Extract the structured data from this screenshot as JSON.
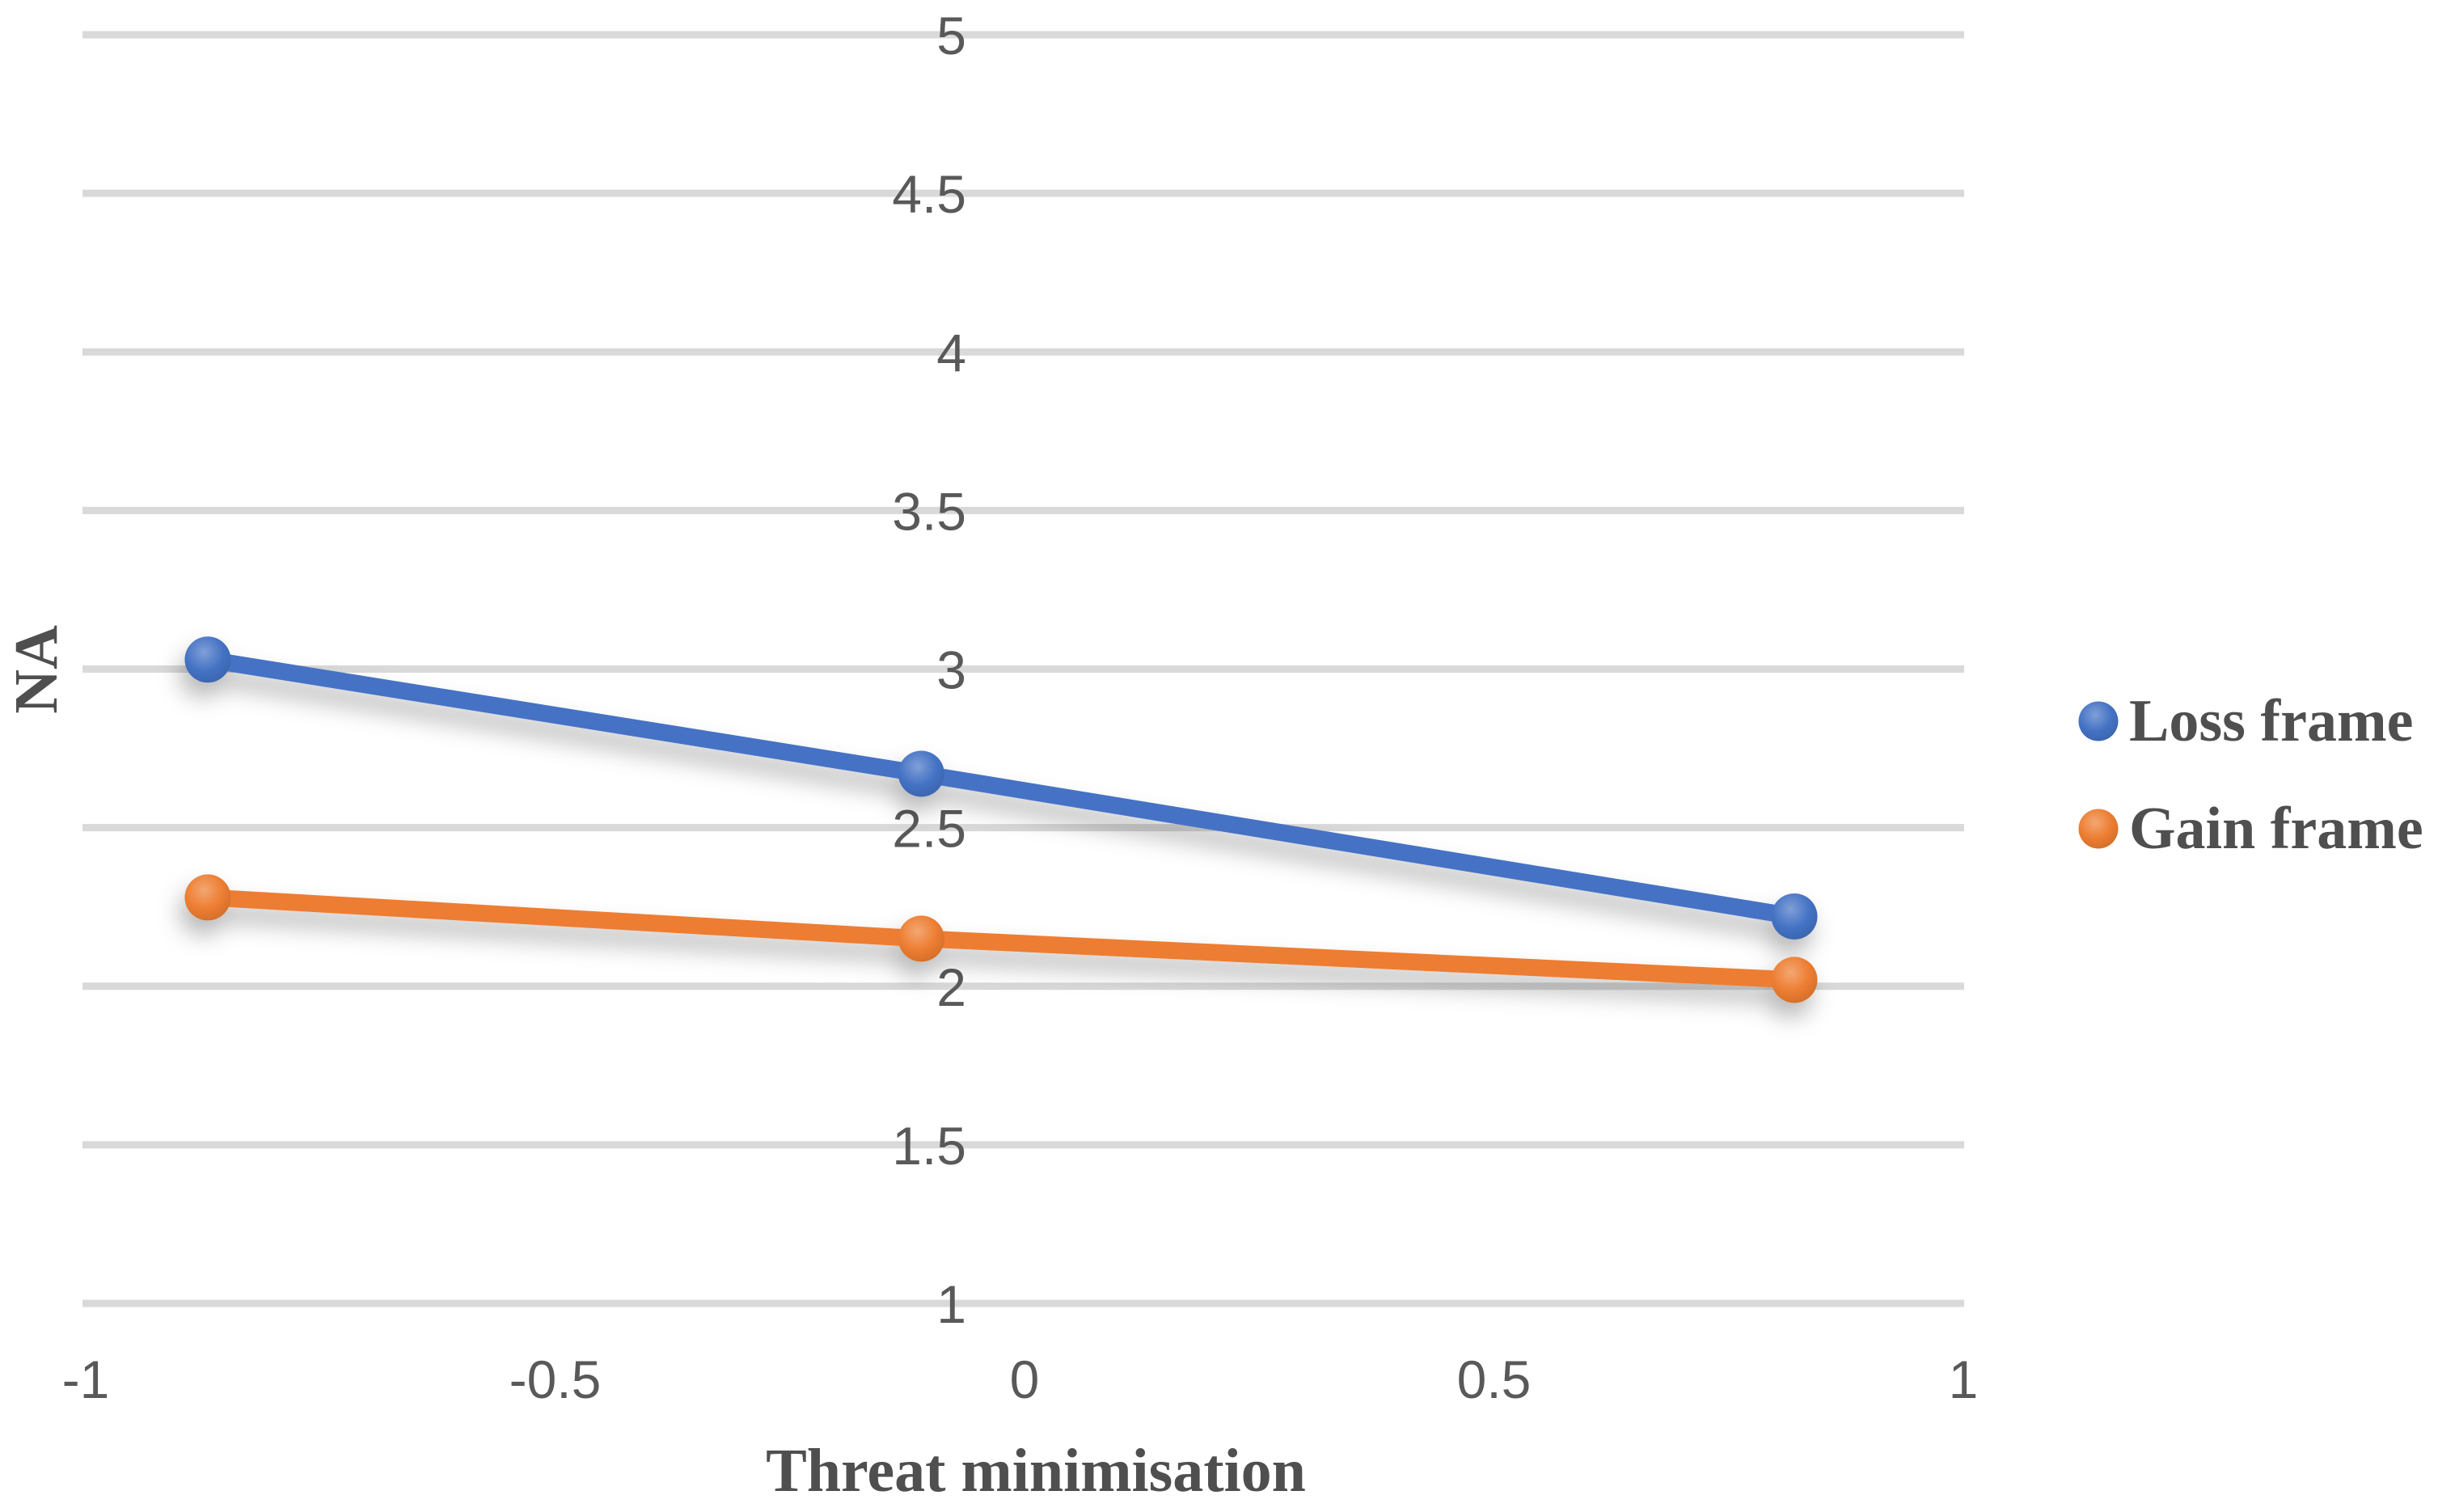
{
  "chart_data": {
    "type": "line",
    "title": "",
    "xlabel": "Threat minimisation",
    "ylabel": "NA",
    "xlim": [
      -1,
      1
    ],
    "ylim": [
      1,
      5
    ],
    "x_ticks": [
      -1,
      -0.5,
      0,
      0.5,
      1
    ],
    "x_tick_labels": [
      "-1",
      "-0.5",
      "0",
      "0.5",
      "1"
    ],
    "y_ticks": [
      5,
      4.5,
      4,
      3.5,
      3,
      2.5,
      2,
      1.5,
      1
    ],
    "y_tick_labels": [
      "5",
      "4.5",
      "4",
      "3.5",
      "3",
      "2.5",
      "2",
      "1.5",
      "1"
    ],
    "grid": "horizontal-only",
    "legend_position": "right-middle",
    "series": [
      {
        "name": "Loss frame",
        "color": "#4472C4",
        "marker": "circle",
        "x": [
          -0.87,
          -0.11,
          0.82
        ],
        "y": [
          3.03,
          2.67,
          2.22
        ]
      },
      {
        "name": "Gain frame",
        "color": "#ED7D31",
        "marker": "circle",
        "x": [
          -0.87,
          -0.11,
          0.82
        ],
        "y": [
          2.28,
          2.15,
          2.02
        ]
      }
    ],
    "colors": {
      "gridline": "#D9D9D9",
      "tick_text": "#595959",
      "title_text": "#4F4F4F",
      "background": "#FFFFFF"
    }
  }
}
